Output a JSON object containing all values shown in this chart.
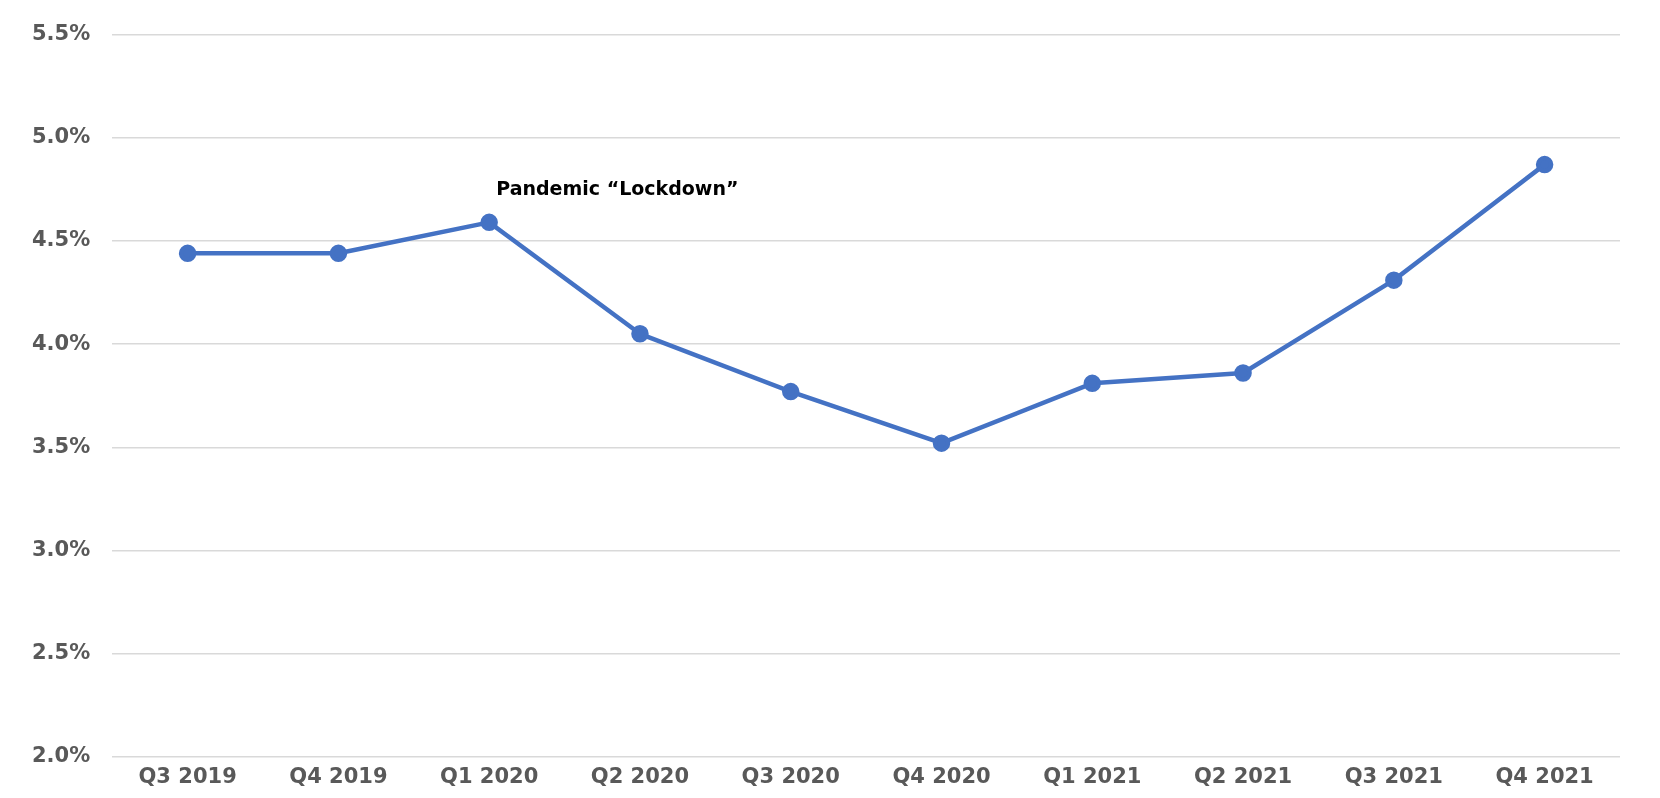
{
  "chart_data": {
    "type": "line",
    "categories": [
      "Q3 2019",
      "Q4 2019",
      "Q1 2020",
      "Q2 2020",
      "Q3 2020",
      "Q4 2020",
      "Q1 2021",
      "Q2 2021",
      "Q3 2021",
      "Q4 2021"
    ],
    "series": [
      {
        "color": "#4472c4",
        "values": [
          4.44,
          4.44,
          4.59,
          4.05,
          3.77,
          3.52,
          3.81,
          3.86,
          4.31,
          4.87
        ]
      }
    ],
    "ylim": [
      2.0,
      5.5
    ],
    "yticks": [
      {
        "value": 2.0,
        "label": "2.0%"
      },
      {
        "value": 2.5,
        "label": "2.5%"
      },
      {
        "value": 3.0,
        "label": "3.0%"
      },
      {
        "value": 3.5,
        "label": "3.5%"
      },
      {
        "value": 4.0,
        "label": "4.0%"
      },
      {
        "value": 4.5,
        "label": "4.5%"
      },
      {
        "value": 5.0,
        "label": "5.0%"
      },
      {
        "value": 5.5,
        "label": "5.5%"
      }
    ],
    "grid": "y",
    "legend": false,
    "marker": "circle",
    "line_style": "solid",
    "annotations": [
      "Pandemic “Lockdown”"
    ]
  }
}
